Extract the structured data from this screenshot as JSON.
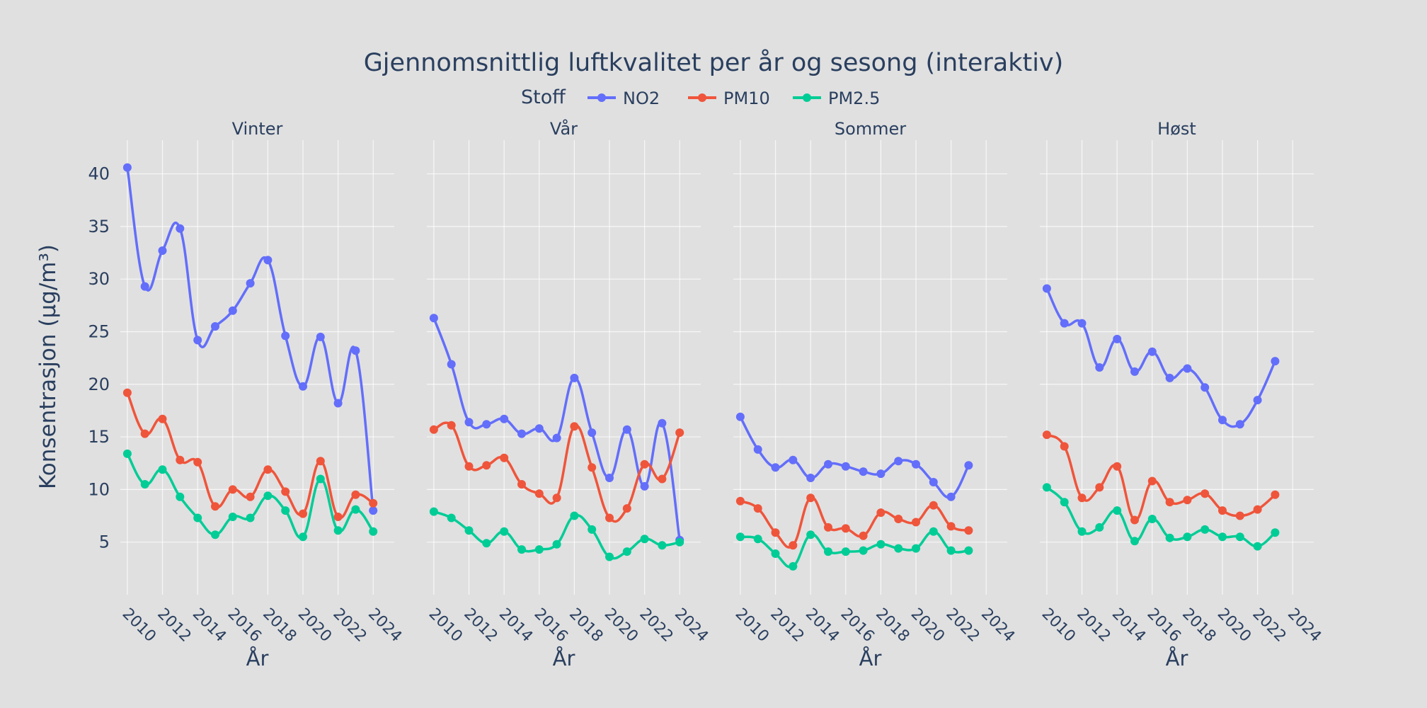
{
  "chart_data": {
    "type": "line",
    "title": "Gjennomsnittlig luftkvalitet per år og sesong (interaktiv)",
    "legend_title": "Stoff",
    "xlabel": "År",
    "ylabel": "Konsentrasjon (µg/m³)",
    "xlim": [
      2009.6,
      2025.2
    ],
    "ylim": [
      0,
      43.2
    ],
    "xticks": [
      2010,
      2012,
      2014,
      2016,
      2018,
      2020,
      2022,
      2024
    ],
    "yticks": [
      5,
      10,
      15,
      20,
      25,
      30,
      35,
      40
    ],
    "colors": {
      "NO2": "#636efa",
      "PM10": "#ef553b",
      "PM2.5": "#00cc96"
    },
    "series_names": [
      "NO2",
      "PM10",
      "PM2.5"
    ],
    "facets": [
      {
        "name": "Vinter",
        "x": [
          2010,
          2011,
          2012,
          2013,
          2014,
          2015,
          2016,
          2017,
          2018,
          2019,
          2020,
          2021,
          2022,
          2023,
          2024
        ],
        "series": [
          {
            "name": "NO2",
            "values": [
              40.6,
              29.3,
              32.7,
              34.8,
              24.2,
              25.5,
              27.0,
              29.6,
              31.8,
              24.6,
              19.8,
              24.5,
              18.2,
              23.2,
              8.0
            ]
          },
          {
            "name": "PM10",
            "values": [
              19.2,
              15.3,
              16.7,
              12.8,
              12.6,
              8.4,
              10.0,
              9.3,
              11.9,
              9.8,
              7.7,
              12.7,
              7.4,
              9.5,
              8.7
            ]
          },
          {
            "name": "PM2.5",
            "values": [
              13.4,
              10.5,
              11.9,
              9.3,
              7.3,
              5.7,
              7.4,
              7.3,
              9.4,
              8.0,
              5.5,
              11.0,
              6.1,
              8.1,
              6.0
            ]
          }
        ]
      },
      {
        "name": "Vår",
        "x": [
          2010,
          2011,
          2012,
          2013,
          2014,
          2015,
          2016,
          2017,
          2018,
          2019,
          2020,
          2021,
          2022,
          2023,
          2024
        ],
        "series": [
          {
            "name": "NO2",
            "values": [
              26.3,
              21.9,
              16.4,
              16.2,
              16.7,
              15.3,
              15.8,
              14.9,
              20.6,
              15.4,
              11.1,
              15.7,
              10.3,
              16.3,
              5.2
            ]
          },
          {
            "name": "PM10",
            "values": [
              15.7,
              16.1,
              12.2,
              12.3,
              13.0,
              10.5,
              9.6,
              9.2,
              16.0,
              12.1,
              7.3,
              8.2,
              12.4,
              11.0,
              15.4
            ]
          },
          {
            "name": "PM2.5",
            "values": [
              7.9,
              7.3,
              6.1,
              4.9,
              6.0,
              4.3,
              4.3,
              4.8,
              7.5,
              6.2,
              3.6,
              4.1,
              5.3,
              4.7,
              5.0
            ]
          }
        ]
      },
      {
        "name": "Sommer",
        "x": [
          2010,
          2011,
          2012,
          2013,
          2014,
          2015,
          2016,
          2017,
          2018,
          2019,
          2020,
          2021,
          2022,
          2023
        ],
        "series": [
          {
            "name": "NO2",
            "values": [
              16.9,
              13.8,
              12.1,
              12.8,
              11.1,
              12.4,
              12.2,
              11.7,
              11.5,
              12.7,
              12.4,
              10.7,
              9.3,
              12.3
            ]
          },
          {
            "name": "PM10",
            "values": [
              8.9,
              8.2,
              5.9,
              4.7,
              9.2,
              6.4,
              6.3,
              5.6,
              7.8,
              7.2,
              6.9,
              8.5,
              6.5,
              6.1
            ]
          },
          {
            "name": "PM2.5",
            "values": [
              5.5,
              5.3,
              3.9,
              2.7,
              5.7,
              4.1,
              4.1,
              4.2,
              4.8,
              4.4,
              4.4,
              6.0,
              4.2,
              4.2
            ]
          }
        ]
      },
      {
        "name": "Høst",
        "x": [
          2010,
          2011,
          2012,
          2013,
          2014,
          2015,
          2016,
          2017,
          2018,
          2019,
          2020,
          2021,
          2022,
          2023
        ],
        "series": [
          {
            "name": "NO2",
            "values": [
              29.1,
              25.8,
              25.8,
              21.6,
              24.3,
              21.2,
              23.1,
              20.6,
              21.5,
              19.7,
              16.6,
              16.2,
              18.5,
              22.2
            ]
          },
          {
            "name": "PM10",
            "values": [
              15.2,
              14.1,
              9.2,
              10.2,
              12.2,
              7.1,
              10.8,
              8.8,
              9.0,
              9.6,
              8.0,
              7.5,
              8.1,
              9.5
            ]
          },
          {
            "name": "PM2.5",
            "values": [
              10.2,
              8.8,
              6.0,
              6.4,
              8.0,
              5.1,
              7.2,
              5.4,
              5.5,
              6.2,
              5.5,
              5.5,
              4.6,
              5.9
            ]
          }
        ]
      }
    ]
  }
}
